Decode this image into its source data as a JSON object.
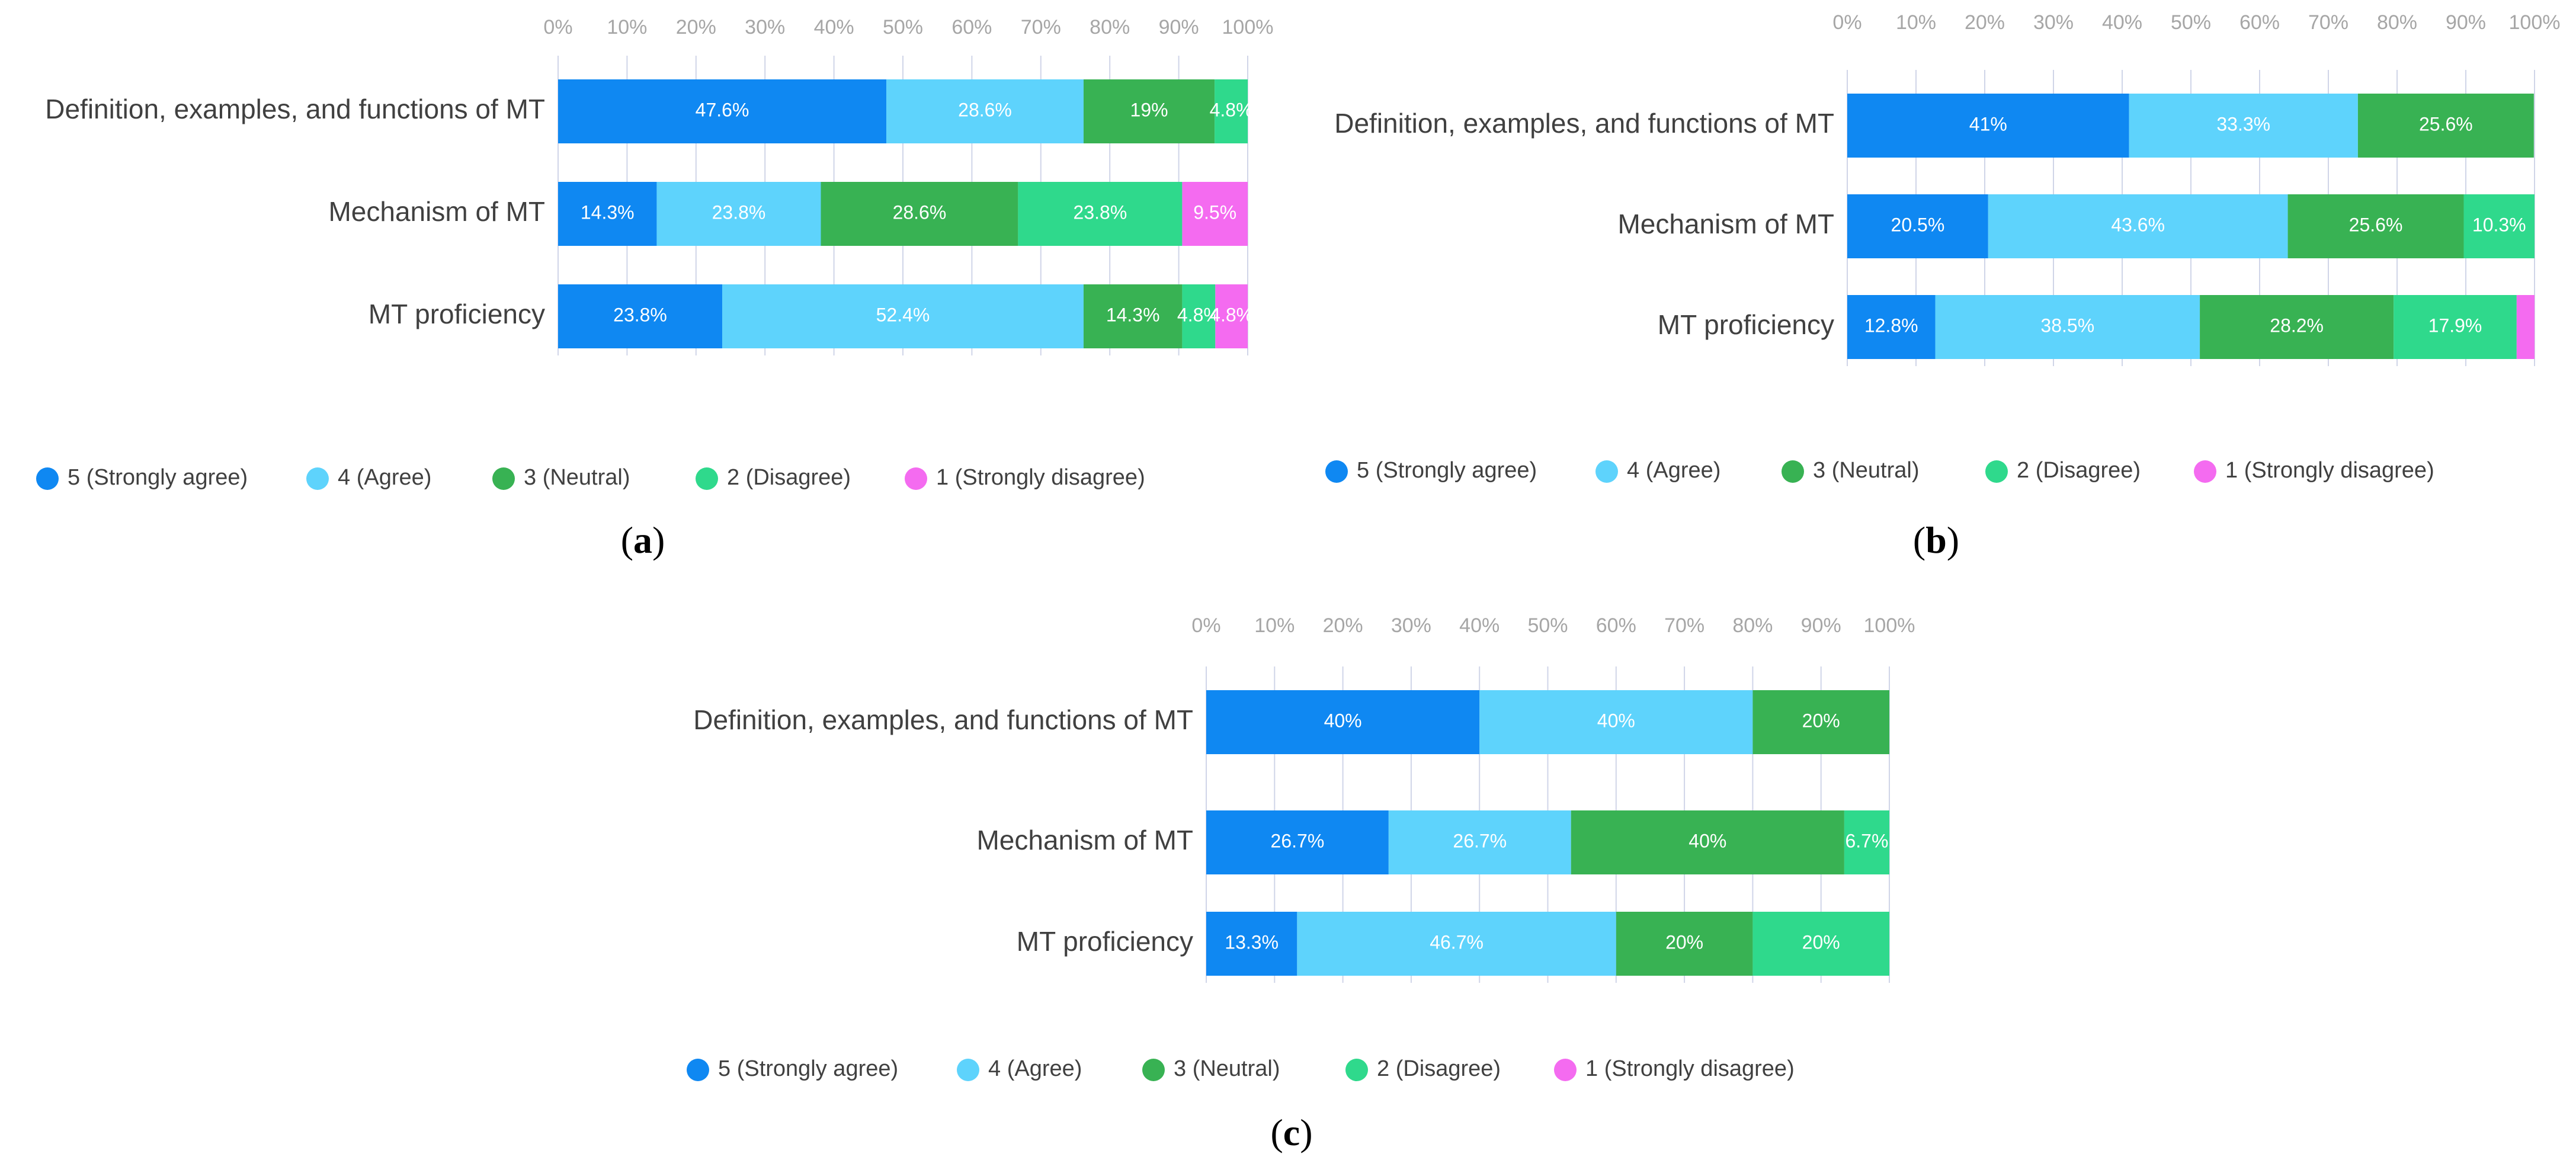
{
  "colors": {
    "5 (Strongly agree)": "#0f88f2",
    "4 (Agree)": "#5ed3fc",
    "3 (Neutral)": "#38b253",
    "2 (Disagree)": "#2fd98c",
    "1 (Strongly disagree)": "#f46bf0",
    "grid": "#d0d5e8",
    "tick_text": "#a6a6a6",
    "category_text": "#404040"
  },
  "chart_data": [
    {
      "type": "bar",
      "orientation": "horizontal-stacked",
      "caption": "a",
      "xlim": [
        0,
        100
      ],
      "xticks": [
        "0%",
        "10%",
        "20%",
        "30%",
        "40%",
        "50%",
        "60%",
        "70%",
        "80%",
        "90%",
        "100%"
      ],
      "categories": [
        "Definition, examples, and functions of MT",
        "Mechanism of MT",
        "MT proficiency"
      ],
      "series": [
        {
          "name": "5 (Strongly agree)",
          "values": [
            47.6,
            14.3,
            23.8
          ],
          "labels": [
            "47.6%",
            "14.3%",
            "23.8%"
          ]
        },
        {
          "name": "4 (Agree)",
          "values": [
            28.6,
            23.8,
            52.4
          ],
          "labels": [
            "28.6%",
            "23.8%",
            "52.4%"
          ]
        },
        {
          "name": "3 (Neutral)",
          "values": [
            19,
            28.6,
            14.3
          ],
          "labels": [
            "19%",
            "28.6%",
            "14.3%"
          ]
        },
        {
          "name": "2 (Disagree)",
          "values": [
            4.8,
            23.8,
            4.8
          ],
          "labels": [
            "4.8%",
            "23.8%",
            "4.8%"
          ]
        },
        {
          "name": "1 (Strongly disagree)",
          "values": [
            0,
            9.5,
            4.8
          ],
          "labels": [
            "",
            "9.5%",
            "4.8%"
          ]
        }
      ],
      "legend": "bottom"
    },
    {
      "type": "bar",
      "orientation": "horizontal-stacked",
      "caption": "b",
      "xlim": [
        0,
        100
      ],
      "xticks": [
        "0%",
        "10%",
        "20%",
        "30%",
        "40%",
        "50%",
        "60%",
        "70%",
        "80%",
        "90%",
        "100%"
      ],
      "categories": [
        "Definition, examples, and functions of MT",
        "Mechanism of MT",
        "MT proficiency"
      ],
      "series": [
        {
          "name": "5 (Strongly agree)",
          "values": [
            41,
            20.5,
            12.8
          ],
          "labels": [
            "41%",
            "20.5%",
            "12.8%"
          ]
        },
        {
          "name": "4 (Agree)",
          "values": [
            33.3,
            43.6,
            38.5
          ],
          "labels": [
            "33.3%",
            "43.6%",
            "38.5%"
          ]
        },
        {
          "name": "3 (Neutral)",
          "values": [
            25.6,
            25.6,
            28.2
          ],
          "labels": [
            "25.6%",
            "25.6%",
            "28.2%"
          ]
        },
        {
          "name": "2 (Disagree)",
          "values": [
            0,
            10.3,
            17.9
          ],
          "labels": [
            "",
            "10.3%",
            "17.9%"
          ]
        },
        {
          "name": "1 (Strongly disagree)",
          "values": [
            0,
            0,
            2.6
          ],
          "labels": [
            "",
            "",
            ""
          ]
        }
      ],
      "legend": "bottom"
    },
    {
      "type": "bar",
      "orientation": "horizontal-stacked",
      "caption": "c",
      "xlim": [
        0,
        100
      ],
      "xticks": [
        "0%",
        "10%",
        "20%",
        "30%",
        "40%",
        "50%",
        "60%",
        "70%",
        "80%",
        "90%",
        "100%"
      ],
      "categories": [
        "Definition, examples, and functions of MT",
        "Mechanism of MT",
        "MT proficiency"
      ],
      "series": [
        {
          "name": "5 (Strongly agree)",
          "values": [
            40,
            26.7,
            13.3
          ],
          "labels": [
            "40%",
            "26.7%",
            "13.3%"
          ]
        },
        {
          "name": "4 (Agree)",
          "values": [
            40,
            26.7,
            46.7
          ],
          "labels": [
            "40%",
            "26.7%",
            "46.7%"
          ]
        },
        {
          "name": "3 (Neutral)",
          "values": [
            20,
            40,
            20
          ],
          "labels": [
            "20%",
            "40%",
            "20%"
          ]
        },
        {
          "name": "2 (Disagree)",
          "values": [
            0,
            6.7,
            20
          ],
          "labels": [
            "",
            "6.7%",
            "20%"
          ]
        },
        {
          "name": "1 (Strongly disagree)",
          "values": [
            0,
            0,
            0
          ],
          "labels": [
            "",
            "",
            ""
          ]
        }
      ],
      "legend": "bottom"
    }
  ]
}
